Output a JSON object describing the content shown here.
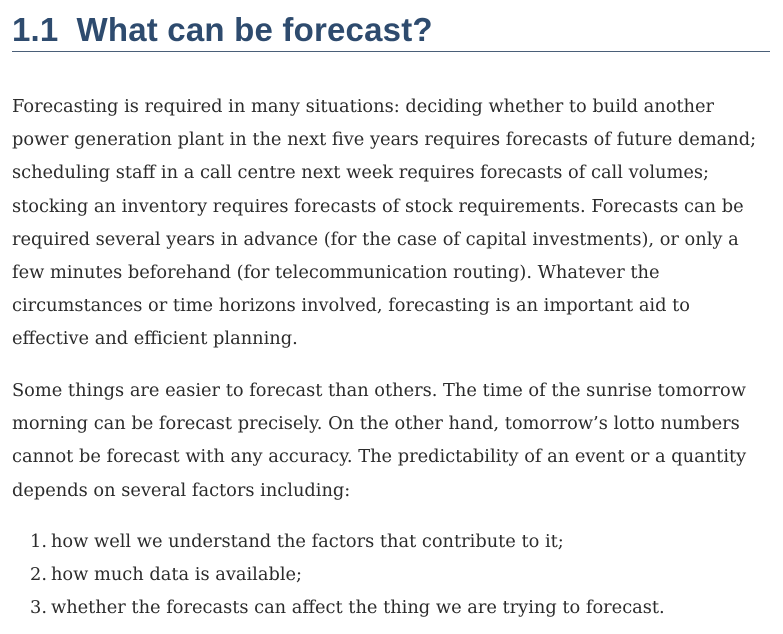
{
  "section": {
    "number": "1.1",
    "title": "What can be forecast?"
  },
  "paragraphs": [
    "Forecasting is required in many situations: deciding whether to build another power generation plant in the next five years requires forecasts of future demand; scheduling staff in a call centre next week requires forecasts of call volumes; stocking an inventory requires forecasts of stock requirements. Forecasts can be required several years in advance (for the case of capital investments), or only a few minutes beforehand (for telecommunication routing). Whatever the circumstances or time horizons involved, forecasting is an important aid to effective and efficient planning.",
    "Some things are easier to forecast than others. The time of the sunrise tomorrow morning can be forecast precisely. On the other hand, tomorrow’s lotto numbers cannot be forecast with any accuracy. The predictability of an event or a quantity depends on several factors including:"
  ],
  "factors": [
    {
      "marker": "1.",
      "text": "how well we understand the factors that contribute to it;"
    },
    {
      "marker": "2.",
      "text": "how much data is available;"
    },
    {
      "marker": "3.",
      "text": "whether the forecasts can affect the thing we are trying to forecast."
    }
  ],
  "colors": {
    "heading": "#2e4b6e",
    "rule": "#4a5f78",
    "text": "#2b2b2b"
  }
}
